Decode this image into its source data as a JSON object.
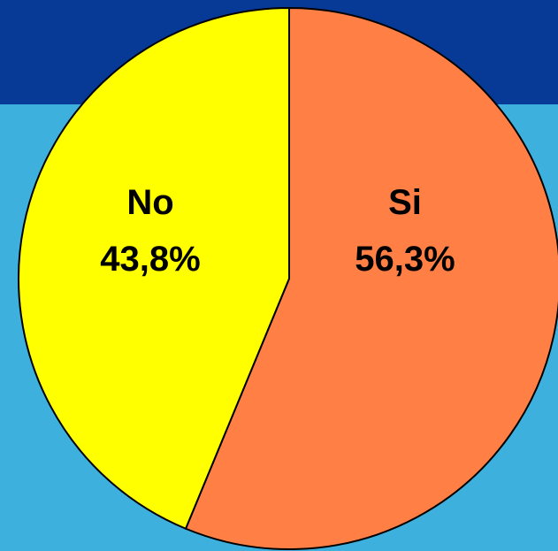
{
  "chart_data": {
    "type": "pie",
    "slices": [
      {
        "label": "Si",
        "value": 56.3,
        "display_value": "56,3%",
        "color": "#FF7F45"
      },
      {
        "label": "No",
        "value": 43.8,
        "display_value": "43,8%",
        "color": "#FFFF00"
      }
    ],
    "title": "",
    "legend": "none",
    "start_angle_deg": 0,
    "direction": "clockwise"
  },
  "colors": {
    "background": "#3DB0DD",
    "top_band": "#063A96",
    "outline": "#000000",
    "label_text": "#000000"
  }
}
